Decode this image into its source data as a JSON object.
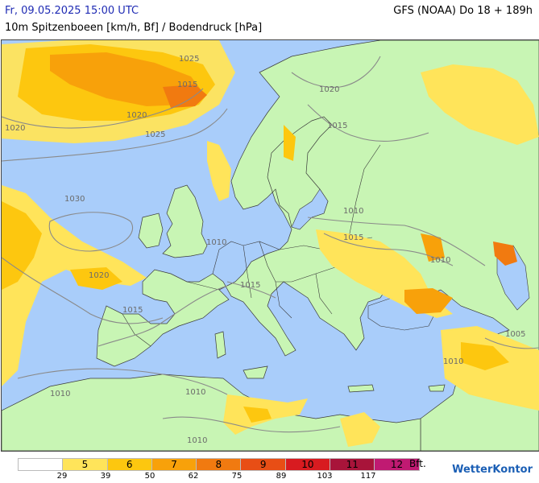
{
  "header": {
    "date": "Fr, 09.05.2025 15:00 UTC",
    "model": "GFS (NOAA) Do 18 + 189h",
    "subtitle": "10m Spitzenboeen [km/h, Bf] / Bodendruck [hPa]"
  },
  "colors": {
    "sea": "#a9cdfa",
    "land": "#c8f5b4",
    "isobar": "#8a8a8a",
    "border": "#3a3a3a"
  },
  "isobar_labels": [
    "1005",
    "1010",
    "1015",
    "1020",
    "1025",
    "1030"
  ],
  "legend": {
    "bins": [
      {
        "label": "",
        "color": "#ffffff"
      },
      {
        "label": "5",
        "color": "#ffe45a"
      },
      {
        "label": "6",
        "color": "#fdc70f"
      },
      {
        "label": "7",
        "color": "#f8a10a"
      },
      {
        "label": "8",
        "color": "#f17a10"
      },
      {
        "label": "9",
        "color": "#e84e15"
      },
      {
        "label": "10",
        "color": "#d81b20"
      },
      {
        "label": "11",
        "color": "#a8143a"
      },
      {
        "label": "12",
        "color": "#c01a72"
      }
    ],
    "unit": "Bft.",
    "ticks": [
      "29",
      "39",
      "50",
      "62",
      "75",
      "89",
      "103",
      "117"
    ]
  },
  "brand": "WetterKontor"
}
